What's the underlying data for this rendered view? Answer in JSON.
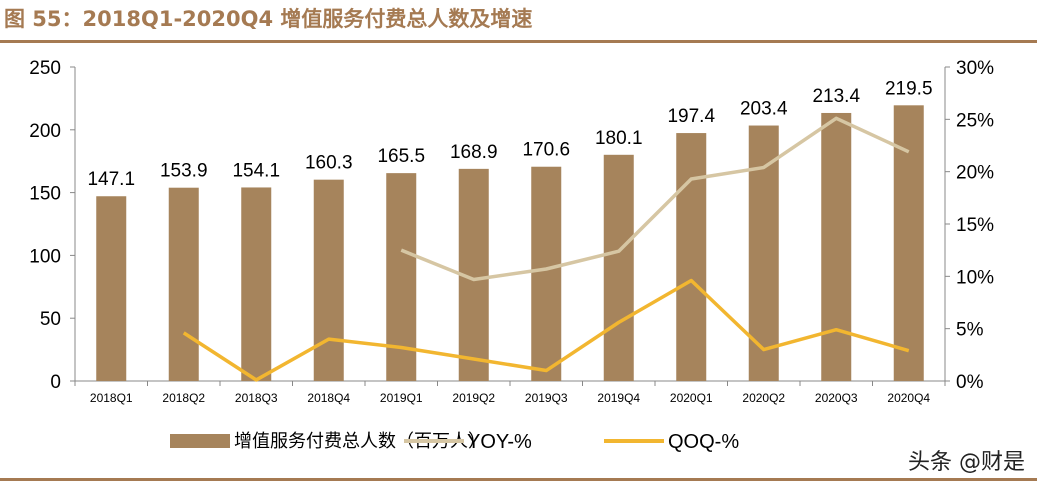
{
  "title": "图 55：2018Q1-2020Q4 增值服务付费总人数及增速",
  "watermark": "头条 @财是",
  "chart_data": {
    "type": "bar+line",
    "categories": [
      "2018Q1",
      "2018Q2",
      "2018Q3",
      "2018Q4",
      "2019Q1",
      "2019Q2",
      "2019Q3",
      "2019Q4",
      "2020Q1",
      "2020Q2",
      "2020Q3",
      "2020Q4"
    ],
    "left_axis": {
      "min": 0,
      "max": 250,
      "ticks": [
        "0",
        "50",
        "100",
        "150",
        "200",
        "250"
      ]
    },
    "right_axis": {
      "min": 0,
      "max": 30,
      "ticks": [
        "0%",
        "5%",
        "10%",
        "15%",
        "20%",
        "25%",
        "30%"
      ]
    },
    "grid": false,
    "legend_position": "bottom",
    "series": [
      {
        "name": "增值服务付费总人数（百万人）",
        "type": "bar",
        "axis": "left",
        "color": "#a6845c",
        "values": [
          147.1,
          153.9,
          154.1,
          160.3,
          165.5,
          168.9,
          170.6,
          180.1,
          197.4,
          203.4,
          213.4,
          219.5
        ],
        "labels": [
          "147.1",
          "153.9",
          "154.1",
          "160.3",
          "165.5",
          "168.9",
          "170.6",
          "180.1",
          "197.4",
          "203.4",
          "213.4",
          "219.5"
        ]
      },
      {
        "name": "YOY-%",
        "type": "line",
        "axis": "right",
        "color": "#d6c6a3",
        "values": [
          null,
          null,
          null,
          null,
          12.5,
          9.7,
          10.7,
          12.4,
          19.3,
          20.4,
          25.1,
          21.9
        ]
      },
      {
        "name": "QOQ-%",
        "type": "line",
        "axis": "right",
        "color": "#f2b630",
        "values": [
          null,
          4.6,
          0.1,
          4.0,
          3.2,
          2.1,
          1.0,
          5.6,
          9.6,
          3.0,
          4.9,
          2.9
        ]
      }
    ]
  }
}
